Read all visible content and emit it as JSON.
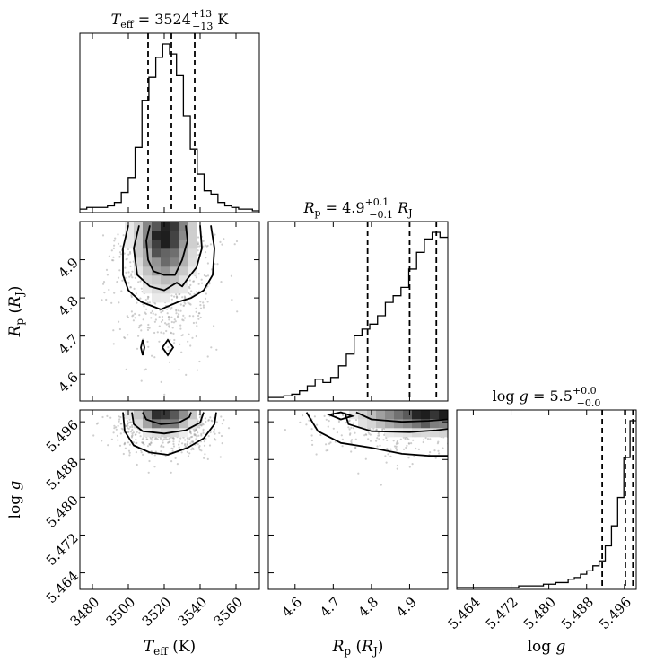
{
  "chart_data": {
    "type": "corner",
    "parameters": [
      {
        "key": "teff",
        "title": "T_eff = 3524 +13/−13 K",
        "axis_label": "T_eff (K)",
        "range": [
          3473,
          3573
        ],
        "ticks": [
          3480,
          3500,
          3520,
          3540,
          3560
        ],
        "tick_labels": [
          "3480",
          "3500",
          "3520",
          "3540",
          "3560"
        ],
        "quantiles": [
          3511,
          3524,
          3537
        ],
        "histogram": [
          0.01,
          0.02,
          0.02,
          0.02,
          0.03,
          0.05,
          0.11,
          0.2,
          0.38,
          0.66,
          0.8,
          0.92,
          1.0,
          0.94,
          0.81,
          0.57,
          0.37,
          0.22,
          0.12,
          0.1,
          0.05,
          0.03,
          0.02,
          0.01,
          0.01,
          0.0
        ]
      },
      {
        "key": "rp",
        "title": "R_p = 4.9 +0.1/−0.1 R_J",
        "axis_label": "R_p (R_J)",
        "range": [
          4.53,
          5.0
        ],
        "ticks": [
          4.6,
          4.7,
          4.8,
          4.9
        ],
        "tick_labels": [
          "4.6",
          "4.7",
          "4.8",
          "4.9"
        ],
        "quantiles": [
          4.79,
          4.9,
          4.97
        ],
        "histogram": [
          0.01,
          0.01,
          0.02,
          0.03,
          0.05,
          0.08,
          0.12,
          0.1,
          0.13,
          0.2,
          0.27,
          0.38,
          0.42,
          0.45,
          0.5,
          0.58,
          0.62,
          0.67,
          0.78,
          0.88,
          0.96,
          1.0,
          0.97
        ]
      },
      {
        "key": "logg",
        "title": "log g = 5.5 +0.0/−0.0",
        "axis_label": "log g",
        "range": [
          5.4605,
          5.4985
        ],
        "ticks": [
          5.464,
          5.472,
          5.48,
          5.488,
          5.496
        ],
        "tick_labels": [
          "5.464",
          "5.472",
          "5.480",
          "5.488",
          "5.496"
        ],
        "quantiles": [
          5.4913,
          5.4962,
          5.4978
        ],
        "histogram": [
          0.0,
          0.0,
          0.0,
          0.0,
          0.0,
          0.0,
          0.0,
          0.0,
          0.0,
          0.0,
          0.01,
          0.01,
          0.01,
          0.01,
          0.02,
          0.02,
          0.03,
          0.03,
          0.05,
          0.06,
          0.08,
          0.1,
          0.13,
          0.16,
          0.25,
          0.37,
          0.54,
          0.78,
          1.0
        ]
      }
    ],
    "title_parts": [
      {
        "sym": "T",
        "sub": "eff",
        "eq": "= 3524",
        "sup": "+13",
        "sub2": "−13",
        "unit": "K",
        "unit_sub": ""
      },
      {
        "sym": "R",
        "sub": "p",
        "eq": "= 4.9",
        "sup": "+0.1",
        "sub2": "−0.1",
        "unit": "R",
        "unit_sub": "J"
      },
      {
        "sym": "log g",
        "sub": "",
        "eq": "= 5.5",
        "sup": "+0.0",
        "sub2": "−0.0",
        "unit": "",
        "unit_sub": ""
      }
    ],
    "label_parts": [
      {
        "sym": "T",
        "sub": "eff",
        "unit": "K",
        "unit_sub": ""
      },
      {
        "sym": "R",
        "sub": "p",
        "unit": "R",
        "unit_sub": "J"
      },
      {
        "sym": "log g",
        "sub": "",
        "unit": "",
        "unit_sub": ""
      }
    ],
    "density_2d": {
      "rp_vs_teff": {
        "note_units": "x in K, y in R_J",
        "peak": [
          3520,
          4.97
        ],
        "sigma": [
          9,
          0.07
        ],
        "contours": [
          [
            [
              3512,
              4.99
            ],
            [
              3510,
              4.95
            ],
            [
              3511,
              4.9
            ],
            [
              3514,
              4.87
            ],
            [
              3520,
              4.86
            ],
            [
              3526,
              4.86
            ],
            [
              3530,
              4.9
            ],
            [
              3533,
              4.95
            ],
            [
              3532,
              4.99
            ]
          ],
          [
            [
              3506,
              4.99
            ],
            [
              3503,
              4.93
            ],
            [
              3505,
              4.86
            ],
            [
              3512,
              4.83
            ],
            [
              3520,
              4.82
            ],
            [
              3527,
              4.84
            ],
            [
              3530,
              4.83
            ],
            [
              3533,
              4.85
            ],
            [
              3538,
              4.88
            ],
            [
              3541,
              4.93
            ],
            [
              3540,
              4.99
            ]
          ],
          [
            [
              3500,
              4.99
            ],
            [
              3497,
              4.93
            ],
            [
              3497,
              4.86
            ],
            [
              3500,
              4.82
            ],
            [
              3507,
              4.79
            ],
            [
              3518,
              4.77
            ],
            [
              3528,
              4.79
            ],
            [
              3535,
              4.8
            ],
            [
              3542,
              4.82
            ],
            [
              3547,
              4.86
            ],
            [
              3548,
              4.93
            ],
            [
              3546,
              4.99
            ]
          ]
        ],
        "islands": [
          [
            [
              3522,
              4.69
            ],
            [
              3525,
              4.67
            ],
            [
              3522,
              4.65
            ],
            [
              3519,
              4.67
            ]
          ],
          [
            [
              3508,
              4.69
            ],
            [
              3509,
              4.67
            ],
            [
              3508,
              4.65
            ],
            [
              3507,
              4.67
            ]
          ]
        ]
      },
      "logg_vs_teff": {
        "peak": [
          3520,
          5.4975
        ],
        "sigma": [
          9,
          0.0018
        ],
        "contours": [
          [
            [
              3508,
              5.498
            ],
            [
              3510,
              5.4965
            ],
            [
              3518,
              5.4955
            ],
            [
              3528,
              5.4958
            ],
            [
              3534,
              5.497
            ],
            [
              3535,
              5.498
            ]
          ],
          [
            [
              3502,
              5.498
            ],
            [
              3503,
              5.4955
            ],
            [
              3508,
              5.494
            ],
            [
              3520,
              5.4935
            ],
            [
              3532,
              5.4942
            ],
            [
              3540,
              5.4958
            ],
            [
              3542,
              5.498
            ]
          ],
          [
            [
              3497,
              5.498
            ],
            [
              3498,
              5.494
            ],
            [
              3503,
              5.491
            ],
            [
              3512,
              5.4895
            ],
            [
              3522,
              5.489
            ],
            [
              3533,
              5.4905
            ],
            [
              3542,
              5.4925
            ],
            [
              3548,
              5.4955
            ],
            [
              3549,
              5.498
            ]
          ]
        ]
      },
      "logg_vs_rp": {
        "peak": [
          4.96,
          5.4975
        ],
        "sigma": [
          0.1,
          0.0018
        ],
        "contours": [
          [
            [
              4.76,
              5.498
            ],
            [
              4.8,
              5.4965
            ],
            [
              4.88,
              5.496
            ],
            [
              4.95,
              5.4962
            ],
            [
              5.0,
              5.4965
            ]
          ],
          [
            [
              4.73,
              5.498
            ],
            [
              4.74,
              5.4955
            ],
            [
              4.8,
              5.494
            ],
            [
              4.9,
              5.4938
            ],
            [
              4.97,
              5.4942
            ],
            [
              5.0,
              5.4945
            ]
          ],
          [
            [
              4.63,
              5.498
            ],
            [
              4.66,
              5.494
            ],
            [
              4.72,
              5.4915
            ],
            [
              4.8,
              5.4905
            ],
            [
              4.88,
              5.4892
            ],
            [
              4.95,
              5.4888
            ],
            [
              5.0,
              5.4888
            ]
          ]
        ],
        "islands": [
          [
            [
              4.69,
              5.4975
            ],
            [
              4.72,
              5.4965
            ],
            [
              4.75,
              5.4972
            ],
            [
              4.72,
              5.498
            ]
          ]
        ]
      }
    },
    "colors": {
      "line": "#000000",
      "dots": "#9e9e9e",
      "background": "#ffffff"
    }
  }
}
